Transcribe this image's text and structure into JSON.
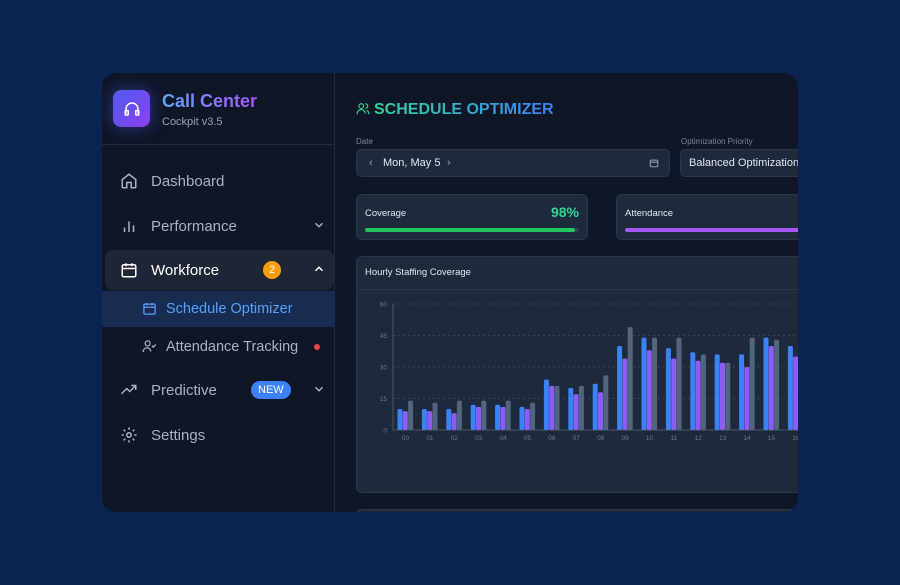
{
  "brand": {
    "name": "Call Center",
    "version": "Cockpit v3.5",
    "icon": "headphones-icon"
  },
  "sidebar": {
    "items": [
      {
        "label": "Dashboard",
        "icon": "home-icon"
      },
      {
        "label": "Performance",
        "icon": "bar-chart-icon"
      },
      {
        "label": "Workforce",
        "icon": "calendar-icon",
        "badge": "2"
      },
      {
        "label": "Schedule Optimizer",
        "icon": "calendar-icon"
      },
      {
        "label": "Attendance Tracking",
        "icon": "user-check-icon"
      },
      {
        "label": "Predictive",
        "icon": "trending-up-icon",
        "badge": "NEW"
      },
      {
        "label": "Settings",
        "icon": "gear-icon"
      }
    ]
  },
  "header": {
    "title": "SCHEDULE OPTIMIZER"
  },
  "controls": {
    "date_label": "Date",
    "date_value": "Mon, May 5",
    "priority_label": "Optimization Priority",
    "priority_value": "Balanced Optimization"
  },
  "stats": [
    {
      "label": "Coverage",
      "value": "98%",
      "progress": 98,
      "color": "#22c55e"
    },
    {
      "label": "Attendance",
      "progress": 100,
      "color": "#a855f7"
    }
  ],
  "chart_data": {
    "type": "bar",
    "title": "Hourly Staffing Coverage",
    "categories": [
      "00",
      "01",
      "02",
      "03",
      "04",
      "05",
      "06",
      "07",
      "08",
      "09",
      "10",
      "11",
      "12",
      "13",
      "14",
      "15",
      "16"
    ],
    "yticks": [
      "0",
      "15",
      "30",
      "45",
      "60"
    ],
    "ylim": [
      0,
      60
    ],
    "grid": true,
    "series": [
      {
        "color": "#3b82f6",
        "values": [
          10,
          10,
          10,
          12,
          12,
          11,
          24,
          20,
          22,
          40,
          44,
          39,
          37,
          36,
          36,
          44,
          40
        ]
      },
      {
        "color": "#8b5cf6",
        "values": [
          9,
          9,
          8,
          11,
          11,
          10,
          21,
          17,
          18,
          34,
          38,
          34,
          33,
          32,
          30,
          40,
          35
        ]
      },
      {
        "color": "#52657f",
        "values": [
          14,
          13,
          14,
          14,
          14,
          13,
          21,
          21,
          26,
          49,
          44,
          44,
          36,
          32,
          44,
          43,
          48
        ]
      }
    ]
  }
}
